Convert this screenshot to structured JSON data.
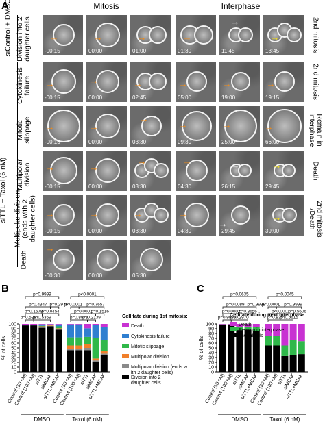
{
  "panels": {
    "a": "A",
    "b": "B",
    "c": "C"
  },
  "phase_headers": {
    "mitosis": "Mitosis",
    "interphase": "Interphase"
  },
  "conditions": {
    "control": "siControl + DMSO",
    "treated": "siTTL + Taxol (6 nM)"
  },
  "rows": [
    {
      "label": "Division into 2 daughter cells",
      "right": "2nd mitosis",
      "times": [
        "-00:15",
        "00:00",
        "01:00",
        "01:30",
        "11:45",
        "13:45"
      ]
    },
    {
      "label": "Cytokinesis failure",
      "right": "2nd mitosis",
      "times": [
        "-00:15",
        "00:00",
        "02:45",
        "05:00",
        "19:00",
        "19:15"
      ]
    },
    {
      "label": "Mitotic slippage",
      "right": "Remain in interphase",
      "times": [
        "-00:15",
        "00:00",
        "03:30",
        "09:30",
        "25:00",
        "66:00"
      ]
    },
    {
      "label": "Multipolar division",
      "right": "Death",
      "times": [
        "-00:15",
        "00:00",
        "03:30",
        "04:30",
        "26:15",
        "29:45"
      ]
    },
    {
      "label": "Multipolar division (ends with 2 daughter cells)",
      "right": "2nd mitosis /Death",
      "times": [
        "-00:15",
        "00:00",
        "03:30",
        "04:30",
        "29:45",
        "39:00"
      ]
    },
    {
      "label": "Death",
      "right": "",
      "times": [
        "-00:30",
        "00:00",
        "05:30"
      ]
    }
  ],
  "colors": {
    "death": "#c832d2",
    "cyto": "#2f7fd0",
    "slippage": "#2fb84a",
    "multipolar": "#f07f2a",
    "multipolar2": "#8a8a8a",
    "division": "#000000",
    "arrow_orange": "#f08c1a",
    "arrow_yellow": "#f5e11c",
    "arrow_white": "#ffffff"
  },
  "chart_b": {
    "type": "bar",
    "ylabel": "% of cells",
    "yticks": [
      "0",
      "10",
      "20",
      "30",
      "40",
      "50",
      "60",
      "70",
      "80",
      "90",
      "100"
    ],
    "ylim": [
      0,
      100
    ],
    "categories": [
      "Control (50 nM)",
      "Control (100 nM)",
      "siTTL",
      "siMCAK",
      "siTTL+MCAK",
      "Control (50 nM)",
      "Control (100 nM)",
      "siTTL",
      "siMCAK",
      "siTTL+MCAK"
    ],
    "groups": [
      {
        "label": "DMSO"
      },
      {
        "label": "Taxol (6 nM)"
      }
    ],
    "legend_title": "Cell fate during 1st mitosis:",
    "legend": [
      "Death",
      "Cytokinesis failure",
      "Mitotic slippage",
      "Multipolar division",
      "Multipolar division (ends with 2 daughter cells)",
      "Division into 2 daughter cells"
    ],
    "series": [
      {
        "name": "Division into 2 daughter cells",
        "color_key": "division",
        "values": [
          97,
          97,
          92,
          95,
          88,
          45,
          45,
          45,
          21,
          35
        ]
      },
      {
        "name": "Multipolar division (ends with 2 daughter cells)",
        "color_key": "multipolar2",
        "values": [
          0,
          0,
          1,
          1,
          1,
          3,
          3,
          5,
          3,
          3
        ]
      },
      {
        "name": "Multipolar division",
        "color_key": "multipolar",
        "values": [
          0,
          0,
          2,
          1,
          2,
          7,
          7,
          8,
          4,
          6
        ]
      },
      {
        "name": "Mitotic slippage",
        "color_key": "slippage",
        "values": [
          0,
          0,
          1,
          1,
          4,
          17,
          17,
          15,
          42,
          22
        ]
      },
      {
        "name": "Cytokinesis failure",
        "color_key": "cyto",
        "values": [
          1,
          1,
          3,
          1,
          4,
          27,
          27,
          18,
          28,
          28
        ]
      },
      {
        "name": "Death",
        "color_key": "death",
        "values": [
          2,
          2,
          1,
          1,
          1,
          1,
          1,
          9,
          2,
          6
        ]
      }
    ],
    "pvalues": [
      {
        "text": "p=0.5287"
      },
      {
        "text": "p=0.5359"
      },
      {
        "text": "p=0.1678"
      },
      {
        "text": "p=0.0454"
      },
      {
        "text": "p=0.4347"
      },
      {
        "text": "p=0.2976"
      },
      {
        "text": "p=0.9999"
      },
      {
        "text": "p=0.8973"
      },
      {
        "text": "p=0.2139"
      },
      {
        "text": "p=0.0001"
      },
      {
        "text": "p=0.1516"
      },
      {
        "text": "p<0.0001"
      },
      {
        "text": "p=0.7657"
      },
      {
        "text": "p<0.0001"
      }
    ]
  },
  "chart_c": {
    "type": "bar",
    "ylabel": "% of cells",
    "yticks": [
      "0",
      "10",
      "20",
      "30",
      "40",
      "50",
      "60",
      "70",
      "80",
      "90",
      "100"
    ],
    "ylim": [
      0,
      100
    ],
    "categories": [
      "Control (50 nM)",
      "Control (100 nM)",
      "siTTL",
      "siMCAK",
      "siTTL+MCAK",
      "Control (50 nM)",
      "Control (100 nM)",
      "siTTL",
      "siMCAK",
      "siTTL+MCAK"
    ],
    "groups": [
      {
        "label": "DMSO"
      },
      {
        "label": "Taxol (6 nM)"
      }
    ],
    "legend_title": "Cell fate during next interphase:",
    "legend": [
      "Death",
      "Remain in interphase",
      "2nd mitosis"
    ],
    "series": [
      {
        "name": "2nd mitosis",
        "color_key": "division",
        "values": [
          98,
          98,
          87,
          88,
          85,
          55,
          55,
          33,
          35,
          37
        ]
      },
      {
        "name": "Remain in interphase",
        "color_key": "slippage",
        "values": [
          1,
          1,
          7,
          5,
          8,
          20,
          20,
          22,
          32,
          27
        ]
      },
      {
        "name": "Death",
        "color_key": "death",
        "values": [
          1,
          1,
          6,
          7,
          7,
          25,
          25,
          45,
          33,
          36
        ]
      }
    ],
    "pvalues": [
      {
        "text": "p=0.9999"
      },
      {
        "text": "p=0.2970"
      },
      {
        "text": "p=0.0002"
      },
      {
        "text": "p=0.3656"
      },
      {
        "text": "p=0.0089"
      },
      {
        "text": "p=0.9999"
      },
      {
        "text": "p=0.0635"
      },
      {
        "text": "p=0.8357"
      },
      {
        "text": "p=0.5615"
      },
      {
        "text": "p<0.0001"
      },
      {
        "text": "p=0.5606"
      },
      {
        "text": "p<0.0001"
      },
      {
        "text": "p=0.9999"
      },
      {
        "text": "p=0.0045"
      }
    ]
  }
}
